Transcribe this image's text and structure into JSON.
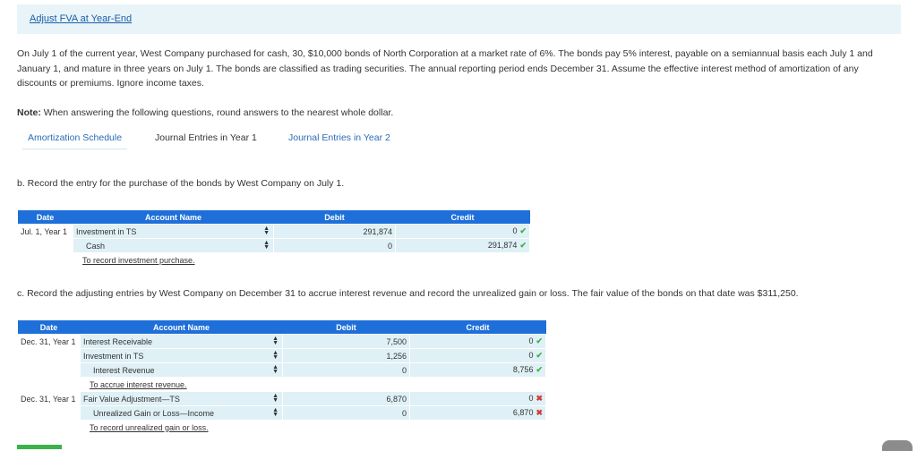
{
  "header": {
    "title": "Adjust FVA at Year-End"
  },
  "intro": "On July 1 of the current year, West Company purchased for cash, 30, $10,000 bonds of North Corporation at a market rate of 6%. The bonds pay 5% interest, payable on a semiannual basis each July 1 and January 1, and mature in three years on July 1. The bonds are classified as trading securities. The annual reporting period ends December 31. Assume the effective interest method of amortization of any discounts or premiums. Ignore income taxes.",
  "note": {
    "label": "Note:",
    "text": " When answering the following questions, round answers to the nearest whole dollar."
  },
  "tabs": [
    "Amortization Schedule",
    "Journal Entries in Year 1",
    "Journal Entries in Year 2"
  ],
  "partB": {
    "question": "b. Record the entry for the purchase of the bonds by West Company on July 1.",
    "headers": {
      "date": "Date",
      "account": "Account Name",
      "debit": "Debit",
      "credit": "Credit"
    },
    "rows": [
      {
        "date": "Jul. 1, Year 1",
        "account": "Investment in TS",
        "debit": "291,874",
        "credit": "0"
      },
      {
        "date": "",
        "account": "Cash",
        "debit": "0",
        "credit": "291,874"
      }
    ],
    "memo": "To record investment purchase."
  },
  "partC": {
    "question": "c. Record the adjusting entries by West Company on December 31 to accrue interest revenue and record the unrealized gain or loss. The fair value of the bonds on that date was $311,250.",
    "headers": {
      "date": "Date",
      "account": "Account Name",
      "debit": "Debit",
      "credit": "Credit"
    },
    "rows": [
      {
        "date": "Dec. 31, Year 1",
        "account": "Interest Receivable",
        "debit": "7,500",
        "credit": "0",
        "status": "correct"
      },
      {
        "date": "",
        "account": "Investment in TS",
        "debit": "1,256",
        "credit": "0",
        "status": "correct"
      },
      {
        "date": "",
        "account": "Interest Revenue",
        "debit": "0",
        "credit": "8,756",
        "status": "correct"
      },
      {
        "date": "Dec. 31, Year 1",
        "account": "Fair Value Adjustment—TS",
        "debit": "6,870",
        "credit": "0",
        "status": "incorrect"
      },
      {
        "date": "",
        "account": "Unrealized Gain or Loss—Income",
        "debit": "0",
        "credit": "6,870",
        "status": "incorrect"
      }
    ],
    "memo1": "To accrue interest revenue.",
    "memo2": "To record unrealized gain or loss."
  },
  "colors": {
    "header_blue": "#1e6fd9",
    "cell_bg": "#dff0f6",
    "correct": "#3cb34a",
    "incorrect": "#d23b3b"
  }
}
